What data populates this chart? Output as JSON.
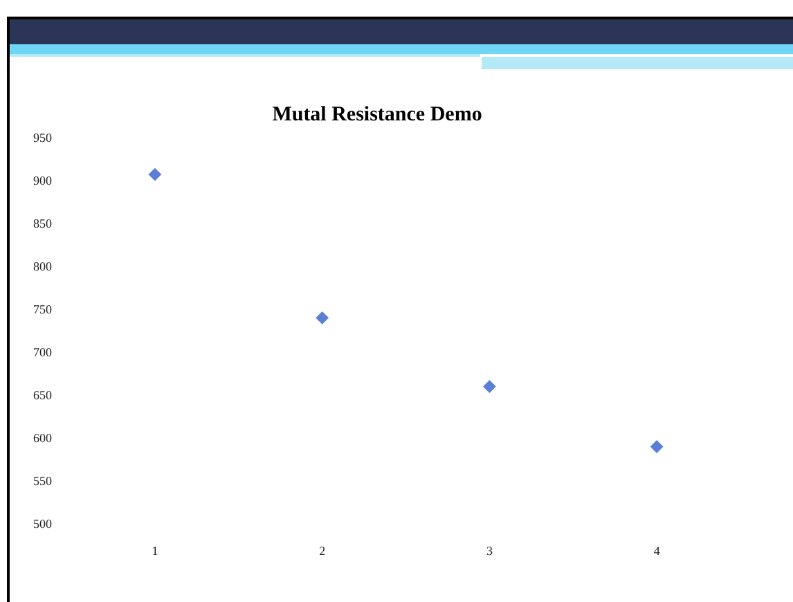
{
  "chart_data": {
    "type": "scatter",
    "title": "Mutal Resistance Demo",
    "categories": [
      "1",
      "2",
      "3",
      "4"
    ],
    "series": [
      {
        "color": "#5b7fd6",
        "values": [
          908,
          741,
          661,
          591
        ]
      }
    ],
    "ylim": [
      500,
      950
    ],
    "yticks": [
      500,
      550,
      600,
      650,
      700,
      750,
      800,
      850,
      900,
      950
    ],
    "grid": false,
    "legend": false,
    "marker": "diamond"
  }
}
